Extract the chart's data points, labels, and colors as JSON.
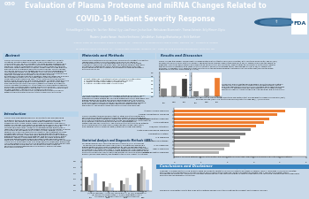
{
  "poster_number": "030",
  "title_line1": "Evaluation of Plasma Proteome and miRNA Changes Related to",
  "title_line2": "COVID-19 Patient Severity Response",
  "authors": "Richard Beger¹, Li-Rong Yu¹, Tao Han¹, Mikhail Illyy¹, Lisa Pierce¹, Jinchun Sun¹, Mathukaran Bloominath¹, Thomas Schmitt¹, Kelly Mercer¹, Elysia",
  "authors2": "Masters¹, Jasaka Harass¹, Heather Smitheme¹, John Arthur², Sudeega Bhattacharya³, Keith Burkhart⁴",
  "affiliations": "¹ National Center for Toxicological Research, Jefferson, AR; ² University of Tennessee Health Science Center, Memphis, TN; ³ University of Arkansas",
  "affiliations2": "for Medical Sciences, Little Rock, AR; ⁴ Arkansas State University, Jonesboro, AR; ⁵ Center for Drug Evaluation and Research, White Oak, MD",
  "header_bg": "#1a5e96",
  "header_text": "#ffffff",
  "body_bg": "#c8d8e8",
  "section_header_bg": "#aed6f1",
  "section_title_color": "#1a5276",
  "conclusions_bg": "#f4d03f",
  "col1_title": "Abstract",
  "col2_title": "Materials and Methods",
  "col3_title": "Results and Discussion",
  "col4_title": "Conclusions and Disclaimer",
  "bar_colors_fig2": [
    "#808080",
    "#404040",
    "#ed7d31",
    "#ffc000"
  ],
  "fig3_bar_colors": [
    "#ed7d31",
    "#ed7d31",
    "#ed7d31",
    "#ed7d31",
    "#ed7d31",
    "#808080",
    "#808080",
    "#808080",
    "#808080",
    "#b0b0b0",
    "#b0b0b0",
    "#b0b0b0"
  ],
  "fig3_values": [
    4.2,
    3.9,
    3.6,
    3.4,
    3.1,
    2.9,
    2.7,
    2.5,
    2.3,
    2.1,
    1.9,
    1.7
  ]
}
